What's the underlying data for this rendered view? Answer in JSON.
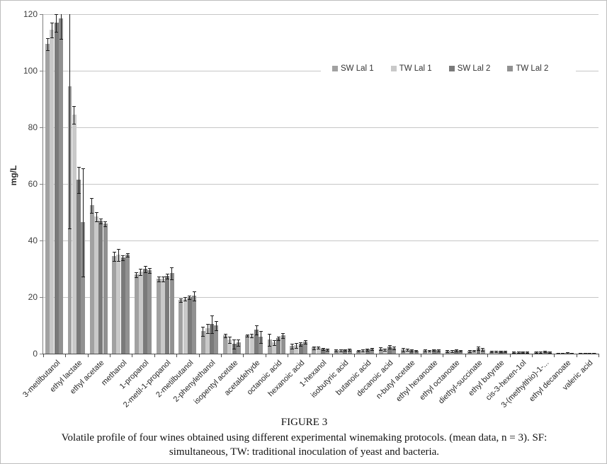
{
  "figure": {
    "caption_title": "FIGURE 3",
    "caption_line1": "Volatile profile of four wines obtained using different experimental winemaking protocols. (mean data, n = 3). SF:",
    "caption_line2": "simultaneous, TW: traditional inoculation of yeast and bacteria."
  },
  "chart_data": {
    "type": "bar",
    "title": "",
    "xlabel": "",
    "ylabel": "mg/L",
    "ylim": [
      0,
      120
    ],
    "yticks": [
      0,
      20,
      40,
      60,
      80,
      100,
      120
    ],
    "grid": true,
    "legend_position": "top-right-inside",
    "error_bars": true,
    "categories": [
      "3-metilbutanol",
      "ethyl lactate",
      "ethyl acetate",
      "methanol",
      "1-propanol",
      "2-metil-1-propanol",
      "2-metilbutanol",
      "2-phenylethanol",
      "isopentyl acetate",
      "acetaldehyde",
      "octanoic acid",
      "hexanoic acid",
      "1-hexanol",
      "isobutyric acid",
      "butanoic acid",
      "decanoic acid",
      "n-butyl acetate",
      "ethyl hexanoate",
      "ethyl octanoate",
      "diethyl-succinate",
      "ethyl butyrate",
      "cis-3-hexen-1ol",
      "3-(methylthio)-1-...",
      "ethyl decanoate",
      "valeric acid"
    ],
    "series": [
      {
        "name": "SW Lal 1",
        "color": "#a1a1a1",
        "values": [
          109.5,
          94.5,
          52.5,
          34.5,
          28,
          26.5,
          19,
          8,
          6.5,
          6.5,
          5,
          2.7,
          2.2,
          1.2,
          1.1,
          1.8,
          1.4,
          1.2,
          1.0,
          1.0,
          0.8,
          0.6,
          0.7,
          0.3,
          0.2
        ],
        "errors": [
          2,
          50,
          2.5,
          1.5,
          0.8,
          0.8,
          0.5,
          1.5,
          0.5,
          0.3,
          2,
          0.8,
          0.4,
          0.2,
          0.2,
          0.4,
          0.5,
          0.2,
          0.2,
          0.2,
          0.1,
          0.1,
          0.1,
          0.05,
          0.05
        ]
      },
      {
        "name": "TW Lal 1",
        "color": "#c9c9c9",
        "values": [
          114.5,
          84.5,
          48.5,
          35,
          29,
          26.5,
          19.5,
          9,
          5,
          6.5,
          4,
          3,
          2.3,
          1.3,
          1.3,
          1.5,
          1.5,
          1.1,
          1.0,
          1.1,
          0.8,
          0.6,
          0.7,
          0.3,
          0.2
        ],
        "errors": [
          2.5,
          3,
          1.5,
          2,
          1,
          0.8,
          0.5,
          1.5,
          1,
          0.4,
          0.8,
          0.8,
          0.3,
          0.2,
          0.2,
          0.3,
          0.3,
          0.2,
          0.2,
          0.2,
          0.1,
          0.1,
          0.1,
          0.05,
          0.05
        ]
      },
      {
        "name": "SW Lal 2",
        "color": "#7a7a7a",
        "values": [
          117,
          61.5,
          47,
          34,
          30,
          27.5,
          20,
          10.5,
          3.5,
          8.5,
          5.5,
          3.5,
          1.8,
          1.4,
          1.5,
          2.5,
          1.2,
          1.4,
          1.2,
          2.0,
          0.9,
          0.7,
          0.8,
          0.35,
          0.25
        ],
        "errors": [
          3,
          4.5,
          0.8,
          0.8,
          1,
          0.8,
          0.5,
          3,
          1.5,
          1.5,
          0.5,
          0.5,
          0.2,
          0.2,
          0.2,
          0.5,
          0.2,
          0.2,
          0.2,
          0.5,
          0.15,
          0.1,
          0.1,
          0.05,
          0.05
        ]
      },
      {
        "name": "TW Lal 2",
        "color": "#919191",
        "values": [
          118.5,
          46.5,
          46,
          35,
          29.5,
          28.5,
          20.5,
          10,
          4,
          6,
          6.5,
          4.3,
          1.5,
          1.5,
          1.7,
          2.1,
          1.1,
          1.3,
          1.1,
          1.6,
          0.8,
          0.6,
          0.7,
          0.3,
          0.2
        ],
        "errors": [
          7,
          19,
          0.8,
          0.5,
          0.8,
          2,
          1.5,
          1.5,
          1,
          2,
          0.8,
          0.5,
          0.2,
          0.2,
          0.2,
          0.4,
          0.2,
          0.2,
          0.2,
          0.4,
          0.1,
          0.1,
          0.1,
          0.05,
          0.05
        ]
      }
    ]
  }
}
